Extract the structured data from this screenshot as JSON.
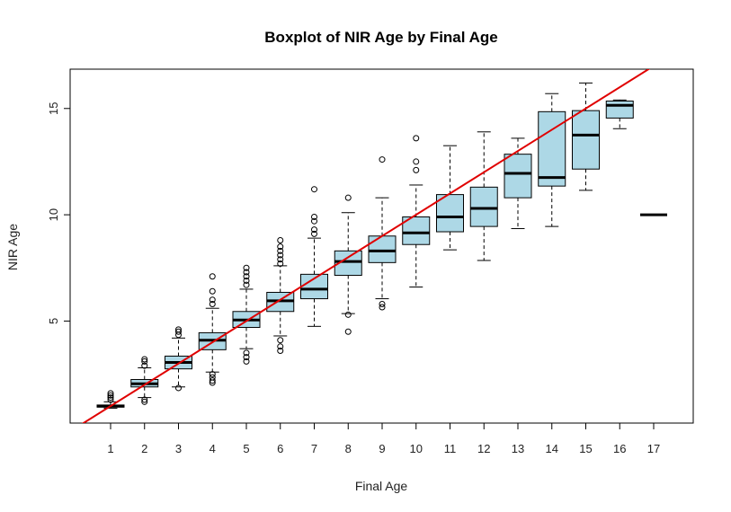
{
  "chart_data": {
    "type": "boxplot",
    "title": "Boxplot of NIR Age by Final Age",
    "xlabel": "Final Age",
    "ylabel": "NIR Age",
    "ylim": [
      0.2,
      16.85
    ],
    "yticks": [
      5,
      10,
      15
    ],
    "categories": [
      "1",
      "2",
      "3",
      "4",
      "5",
      "6",
      "7",
      "8",
      "9",
      "10",
      "11",
      "12",
      "13",
      "14",
      "15",
      "16",
      "17"
    ],
    "boxes": [
      {
        "category": "1",
        "q1": 0.95,
        "median": 1.0,
        "q3": 1.05,
        "whisker_low": 0.9,
        "whisker_high": 1.2,
        "outliers": [
          1.3,
          1.4,
          1.5,
          1.6
        ]
      },
      {
        "category": "2",
        "q1": 1.9,
        "median": 2.05,
        "q3": 2.25,
        "whisker_low": 1.4,
        "whisker_high": 2.8,
        "outliers": [
          1.2,
          1.3,
          2.9,
          3.1,
          3.2
        ]
      },
      {
        "category": "3",
        "q1": 2.75,
        "median": 3.05,
        "q3": 3.35,
        "whisker_low": 1.9,
        "whisker_high": 4.2,
        "outliers": [
          1.85,
          4.35,
          4.5,
          4.6
        ]
      },
      {
        "category": "4",
        "q1": 3.65,
        "median": 4.1,
        "q3": 4.45,
        "whisker_low": 2.6,
        "whisker_high": 5.6,
        "outliers": [
          2.1,
          2.2,
          2.35,
          2.5,
          5.8,
          6.0,
          6.4,
          7.1
        ]
      },
      {
        "category": "5",
        "q1": 4.7,
        "median": 5.05,
        "q3": 5.45,
        "whisker_low": 3.7,
        "whisker_high": 6.5,
        "outliers": [
          3.1,
          3.3,
          3.5,
          6.7,
          6.9,
          7.1,
          7.3,
          7.5
        ]
      },
      {
        "category": "6",
        "q1": 5.45,
        "median": 5.95,
        "q3": 6.35,
        "whisker_low": 4.3,
        "whisker_high": 7.6,
        "outliers": [
          3.6,
          3.8,
          4.1,
          7.7,
          7.9,
          8.1,
          8.3,
          8.5,
          8.8
        ]
      },
      {
        "category": "7",
        "q1": 6.05,
        "median": 6.5,
        "q3": 7.2,
        "whisker_low": 4.75,
        "whisker_high": 8.9,
        "outliers": [
          9.1,
          9.3,
          9.7,
          9.9,
          11.2
        ]
      },
      {
        "category": "8",
        "q1": 7.15,
        "median": 7.8,
        "q3": 8.3,
        "whisker_low": 5.35,
        "whisker_high": 10.1,
        "outliers": [
          4.5,
          5.3,
          10.8
        ]
      },
      {
        "category": "9",
        "q1": 7.75,
        "median": 8.3,
        "q3": 9.0,
        "whisker_low": 6.05,
        "whisker_high": 10.8,
        "outliers": [
          5.65,
          5.8,
          12.6
        ]
      },
      {
        "category": "10",
        "q1": 8.6,
        "median": 9.15,
        "q3": 9.9,
        "whisker_low": 6.6,
        "whisker_high": 11.4,
        "outliers": [
          12.1,
          12.5,
          13.6
        ]
      },
      {
        "category": "11",
        "q1": 9.2,
        "median": 9.9,
        "q3": 10.95,
        "whisker_low": 8.35,
        "whisker_high": 13.25,
        "outliers": []
      },
      {
        "category": "12",
        "q1": 9.45,
        "median": 10.3,
        "q3": 11.3,
        "whisker_low": 7.85,
        "whisker_high": 13.9,
        "outliers": []
      },
      {
        "category": "13",
        "q1": 10.8,
        "median": 11.95,
        "q3": 12.85,
        "whisker_low": 9.35,
        "whisker_high": 13.6,
        "outliers": []
      },
      {
        "category": "14",
        "q1": 11.35,
        "median": 11.75,
        "q3": 14.85,
        "whisker_low": 9.45,
        "whisker_high": 15.7,
        "outliers": []
      },
      {
        "category": "15",
        "q1": 12.15,
        "median": 13.75,
        "q3": 14.9,
        "whisker_low": 11.15,
        "whisker_high": 16.2,
        "outliers": []
      },
      {
        "category": "16",
        "q1": 14.55,
        "median": 15.15,
        "q3": 15.35,
        "whisker_low": 14.05,
        "whisker_high": 15.4,
        "outliers": []
      },
      {
        "category": "17",
        "q1": 10.0,
        "median": 10.0,
        "q3": 10.0,
        "whisker_low": 10.0,
        "whisker_high": 10.0,
        "outliers": []
      }
    ],
    "reference_line": {
      "type": "y=x",
      "color": "#e00000"
    },
    "colors": {
      "box_fill": "#add8e6",
      "box_stroke": "#000000",
      "median": "#000000",
      "axis": "#000000"
    },
    "grid": false,
    "legend": "none"
  }
}
